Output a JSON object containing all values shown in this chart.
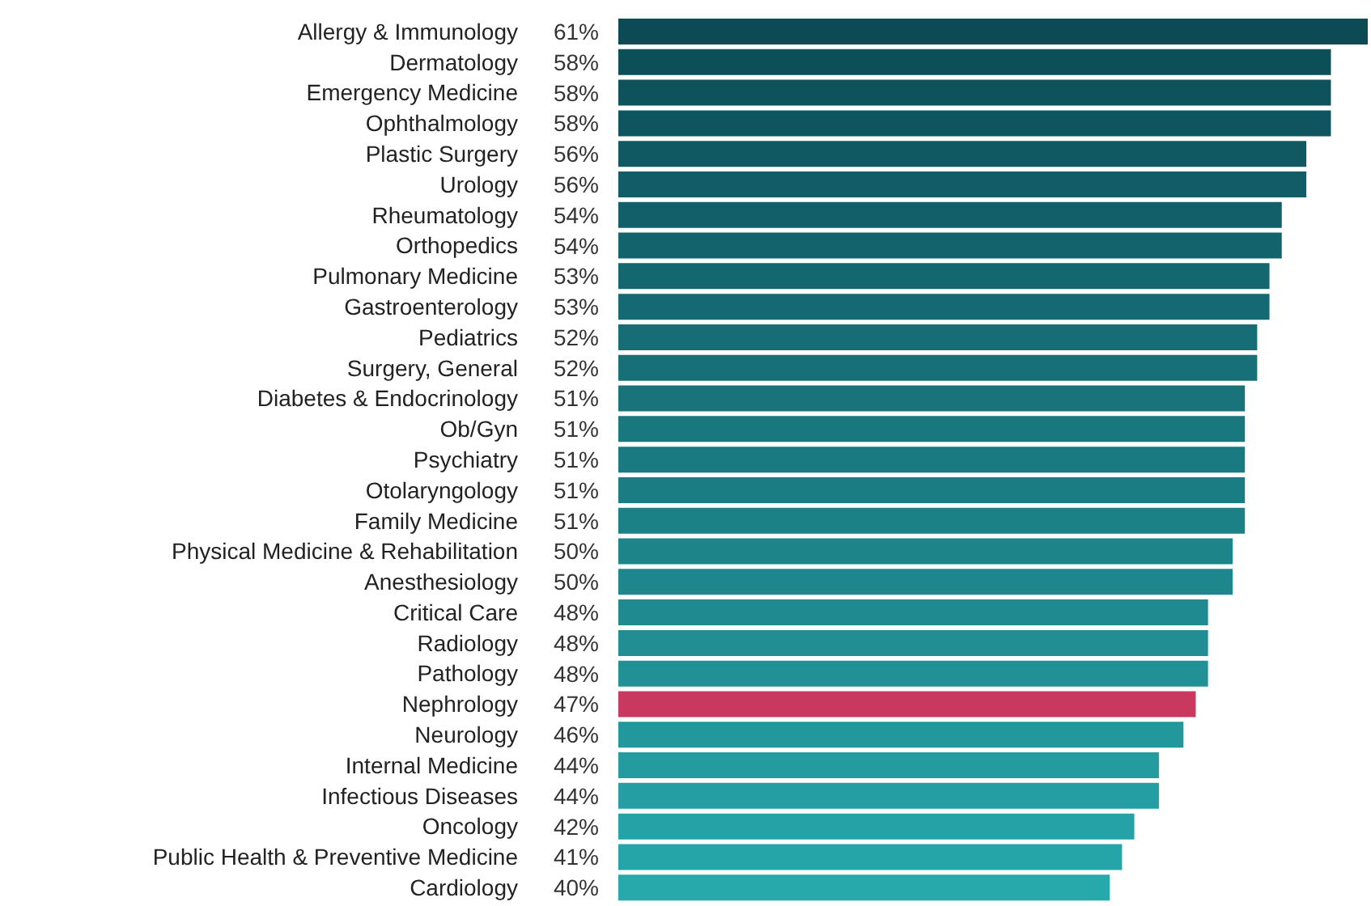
{
  "chart_data": {
    "type": "bar",
    "orientation": "horizontal",
    "data_labels": true,
    "tick_labels": "y",
    "categories": [
      "Allergy & Immunology",
      "Dermatology",
      "Emergency Medicine",
      "Ophthalmology",
      "Plastic Surgery",
      "Urology",
      "Rheumatology",
      "Orthopedics",
      "Pulmonary Medicine",
      "Gastroenterology",
      "Pediatrics",
      "Surgery, General",
      "Diabetes & Endocrinology",
      "Ob/Gyn",
      "Psychiatry",
      "Otolaryngology",
      "Family Medicine",
      "Physical Medicine & Rehabilitation",
      "Anesthesiology",
      "Critical Care",
      "Radiology",
      "Pathology",
      "Nephrology",
      "Neurology",
      "Internal Medicine",
      "Infectious Diseases",
      "Oncology",
      "Public Health & Preventive Medicine",
      "Cardiology"
    ],
    "values": [
      61,
      58,
      58,
      58,
      56,
      56,
      54,
      54,
      53,
      53,
      52,
      52,
      51,
      51,
      51,
      51,
      51,
      50,
      50,
      48,
      48,
      48,
      47,
      46,
      44,
      44,
      42,
      41,
      40
    ],
    "value_labels": [
      "61%",
      "58%",
      "58%",
      "58%",
      "56%",
      "56%",
      "54%",
      "54%",
      "53%",
      "53%",
      "52%",
      "52%",
      "51%",
      "51%",
      "51%",
      "51%",
      "51%",
      "50%",
      "50%",
      "48%",
      "48%",
      "48%",
      "47%",
      "46%",
      "44%",
      "44%",
      "42%",
      "41%",
      "40%"
    ],
    "colors": [
      "#0c4b56",
      "#0d4f59",
      "#0e525c",
      "#0f5560",
      "#105963",
      "#115c66",
      "#125f69",
      "#13636c",
      "#14666f",
      "#156972",
      "#166d75",
      "#177078",
      "#18737b",
      "#19777e",
      "#1a7a81",
      "#1b7d84",
      "#1c8187",
      "#1d848a",
      "#1e878d",
      "#1f8b90",
      "#208e93",
      "#219196",
      "#c9395f",
      "#22989c",
      "#239b9f",
      "#249ea2",
      "#25a2a5",
      "#26a5a8",
      "#27a8ab"
    ]
  }
}
